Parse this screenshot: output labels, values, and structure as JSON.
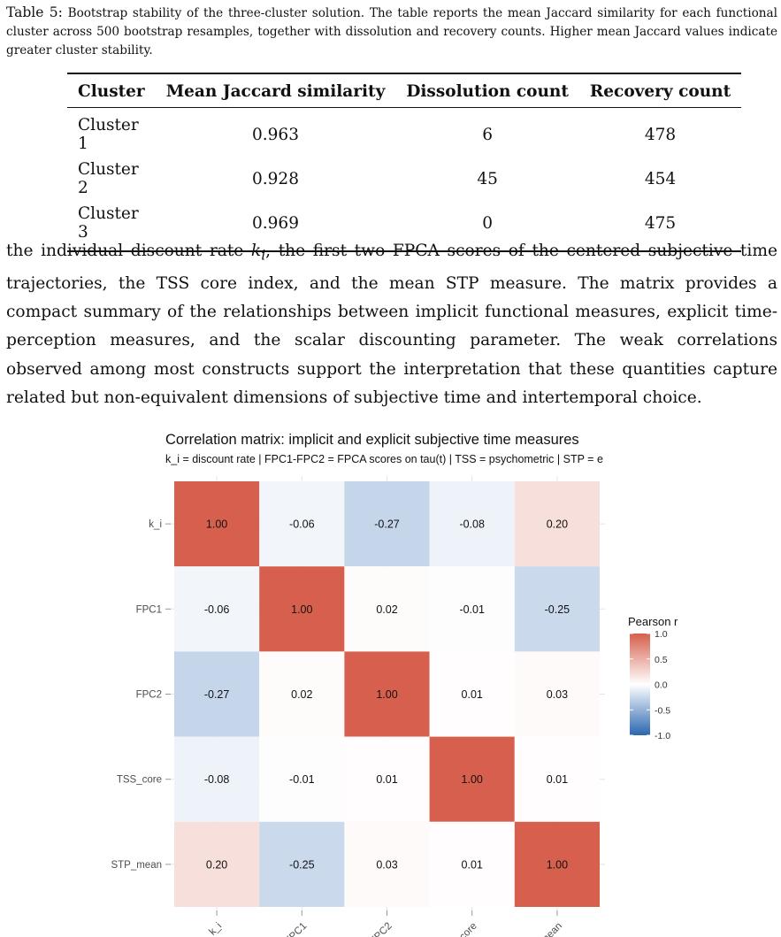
{
  "caption": {
    "lead": "Table 5:",
    "text": "Bootstrap stability of the three-cluster solution. The table reports the mean Jaccard similarity for each functional cluster across 500 bootstrap resamples, together with dissolution and recovery counts. Higher mean Jaccard values indicate greater cluster stability."
  },
  "table": {
    "headers": [
      "Cluster",
      "Mean Jaccard similarity",
      "Dissolution count",
      "Recovery count"
    ],
    "rows": [
      [
        "Cluster 1",
        "0.963",
        "6",
        "478"
      ],
      [
        "Cluster 2",
        "0.928",
        "45",
        "454"
      ],
      [
        "Cluster 3",
        "0.969",
        "0",
        "475"
      ]
    ]
  },
  "body": {
    "p1_before": "the individual discount rate ",
    "p1_math_var": "k",
    "p1_math_sub": "i",
    "p1_after": ", the first two FPCA scores of the centered subjective time trajectories, the TSS core index, and the mean STP measure. The matrix provides a compact summary of the relationships between implicit functional measures, explicit time-perception measures, and the scalar discounting parameter. The weak correlations observed among most constructs support the interpretation that these quantities capture related but non-equivalent dimensions of subjective time and intertemporal choice."
  },
  "chart_data": {
    "type": "heatmap",
    "title": "Correlation matrix: implicit and explicit subjective time measures",
    "subtitle": "k_i = discount rate | FPC1-FPC2 = FPCA scores on tau(t) | TSS = psychometric | STP = e",
    "variables": [
      "k_i",
      "FPC1",
      "FPC2",
      "TSS_core",
      "STP_mean"
    ],
    "matrix": [
      [
        1.0,
        -0.06,
        -0.27,
        -0.08,
        0.2
      ],
      [
        -0.06,
        1.0,
        0.02,
        -0.01,
        -0.25
      ],
      [
        -0.27,
        0.02,
        1.0,
        0.01,
        0.03
      ],
      [
        -0.08,
        -0.01,
        0.01,
        1.0,
        0.01
      ],
      [
        0.2,
        -0.25,
        0.03,
        0.01,
        1.0
      ]
    ],
    "cell_labels": [
      [
        "1.00",
        "-0.06",
        "-0.27",
        "-0.08",
        "0.20"
      ],
      [
        "-0.06",
        "1.00",
        "0.02",
        "-0.01",
        "-0.25"
      ],
      [
        "-0.27",
        "0.02",
        "1.00",
        "0.01",
        "0.03"
      ],
      [
        "-0.08",
        "-0.01",
        "0.01",
        "1.00",
        "0.01"
      ],
      [
        "0.20",
        "-0.25",
        "0.03",
        "0.01",
        "1.00"
      ]
    ],
    "legend": {
      "title": "Pearson r",
      "breaks": [
        1.0,
        0.5,
        0.0,
        -0.5,
        -1.0
      ],
      "break_labels": [
        "1.0",
        "0.5",
        "0.0",
        "-0.5",
        "-1.0"
      ],
      "limits": [
        -1,
        1
      ],
      "placement": "right"
    },
    "colors": {
      "low": "#2b66b0",
      "mid": "#ffffff",
      "high": "#d6604d"
    },
    "grid": true
  }
}
